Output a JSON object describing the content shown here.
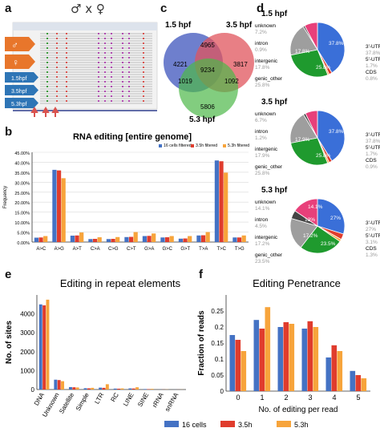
{
  "panel_labels": {
    "a": "a",
    "b": "b",
    "c": "c",
    "d": "d",
    "e": "e",
    "f": "f"
  },
  "panel_a": {
    "title": "♂ x ♀",
    "tracks": [
      "1.5hpf",
      "3.5hpf",
      "5.3hpf"
    ],
    "colors": {
      "male": "#e8762b",
      "female": "#e8762b",
      "track": "#2e75b6"
    }
  },
  "venn": {
    "labels": [
      "1.5 hpf",
      "3.5 hpf",
      "5.3 hpf"
    ],
    "values": {
      "a_only": "4221",
      "b_only": "3817",
      "c_only": "5806",
      "ab": "4965",
      "ac": "1019",
      "bc": "1092",
      "abc": "9234"
    },
    "colors": {
      "a": "#4a5fc1",
      "b": "#e0545c",
      "c": "#4db848"
    }
  },
  "pies": [
    {
      "title": "1.5 hpf",
      "legend_left": [
        [
          "unknown",
          "7.2%"
        ],
        [
          "intron",
          "0.9%"
        ],
        [
          "intergenic",
          "17.8%"
        ],
        [
          "genic_other",
          "25.8%"
        ]
      ],
      "legend_right": [
        [
          "3'-UTR",
          "37.8%"
        ],
        [
          "5'-UTR",
          "1.7%"
        ],
        [
          "CDS",
          "0.8%"
        ]
      ],
      "inner_labels": [
        "37.8%",
        "25.8%",
        "17.8%"
      ]
    },
    {
      "title": "3.5 hpf",
      "legend_left": [
        [
          "unknown",
          "6.7%"
        ],
        [
          "intron",
          "1.2%"
        ],
        [
          "intergenic",
          "17.9%"
        ],
        [
          "genic_other",
          "25.8%"
        ]
      ],
      "legend_right": [
        [
          "3'-UTR",
          "37.8%"
        ],
        [
          "5'-UTR",
          "1.7%"
        ],
        [
          "CDS",
          "0.9%"
        ]
      ],
      "inner_labels": [
        "37.8%",
        "25.8%",
        "17.9%"
      ]
    },
    {
      "title": "5.3 hpf",
      "legend_left": [
        [
          "unknown",
          "14.1%"
        ],
        [
          "intron",
          "4.5%"
        ],
        [
          "intergenic",
          "17.2%"
        ],
        [
          "genic_other",
          "23.5%"
        ]
      ],
      "legend_right": [
        [
          "3'-UTR",
          "27%"
        ],
        [
          "5'-UTR",
          "3.1%"
        ],
        [
          "CDS",
          "1.3%"
        ]
      ],
      "inner_labels": [
        "27%",
        "14.1%",
        "13%",
        "17.2%",
        "23.5%"
      ]
    }
  ],
  "chart_data": [
    {
      "type": "bar",
      "title": "RNA editing [entire genome]",
      "ylabel": "Frequency",
      "xlabel": "",
      "ylim": [
        0,
        45
      ],
      "yticks": [
        "0.00%",
        "5.00%",
        "10.00%",
        "15.00%",
        "20.00%",
        "25.00%",
        "30.00%",
        "35.00%",
        "40.00%",
        "45.00%"
      ],
      "categories": [
        "A>C",
        "A>G",
        "A>T",
        "C>A",
        "C>G",
        "C>T",
        "G>A",
        "G>C",
        "G>T",
        "T>A",
        "T>C",
        "T>G"
      ],
      "series": [
        {
          "name": "16 cells filtered",
          "color": "#4472c4",
          "values": [
            2.2,
            36.2,
            3.2,
            1.5,
            1.5,
            2.5,
            3.0,
            2.3,
            1.7,
            3.3,
            40.9,
            2.3
          ]
        },
        {
          "name": "3.5h filtered",
          "color": "#e03c2d",
          "values": [
            2.3,
            35.9,
            3.3,
            1.6,
            1.6,
            2.6,
            3.1,
            2.4,
            1.8,
            3.4,
            40.5,
            2.3
          ]
        },
        {
          "name": "5.3h filtered",
          "color": "#f7a43b",
          "values": [
            3.0,
            32.0,
            4.8,
            2.4,
            2.5,
            5.0,
            4.3,
            3.0,
            3.0,
            5.0,
            34.8,
            3.3
          ]
        }
      ],
      "legend": "top-right",
      "grid": true
    },
    {
      "type": "bar",
      "title": "Editing in repeat elements",
      "ylabel": "No. of sites",
      "xlabel": "",
      "ylim": [
        0,
        5000
      ],
      "yticks": [
        "0",
        "1000",
        "2000",
        "3000",
        "4000"
      ],
      "categories": [
        "DNA",
        "Unknown",
        "Satellite",
        "Simple",
        "LTR",
        "RC",
        "LINE",
        "SINE",
        "rRNA",
        "snRNA"
      ],
      "series": [
        {
          "name": "16 cells",
          "color": "#4472c4",
          "values": [
            4500,
            520,
            130,
            70,
            100,
            50,
            60,
            25,
            5,
            3
          ]
        },
        {
          "name": "3.5h",
          "color": "#e03c2d",
          "values": [
            4450,
            500,
            120,
            65,
            90,
            45,
            55,
            22,
            5,
            3
          ]
        },
        {
          "name": "5.3h",
          "color": "#f7a43b",
          "values": [
            4750,
            440,
            110,
            90,
            280,
            60,
            120,
            35,
            8,
            4
          ]
        }
      ],
      "grid": false
    },
    {
      "type": "bar",
      "title": "Editing Penetrance",
      "ylabel": "Fraction of reads",
      "xlabel": "No. of editing per read",
      "ylim": [
        0,
        0.3
      ],
      "yticks": [
        "0",
        "0.05",
        "0.1",
        "0.15",
        "0.2",
        "0.25"
      ],
      "categories": [
        "0",
        "1",
        "2",
        "3",
        "4",
        "5"
      ],
      "series": [
        {
          "name": "16 cells",
          "color": "#4472c4",
          "values": [
            0.175,
            0.222,
            0.2,
            0.195,
            0.105,
            0.063
          ]
        },
        {
          "name": "3.5h",
          "color": "#e03c2d",
          "values": [
            0.16,
            0.195,
            0.215,
            0.218,
            0.143,
            0.05
          ]
        },
        {
          "name": "5.3h",
          "color": "#f7a43b",
          "values": [
            0.125,
            0.262,
            0.21,
            0.2,
            0.125,
            0.04
          ]
        }
      ],
      "legend": "bottom",
      "grid": false
    }
  ]
}
